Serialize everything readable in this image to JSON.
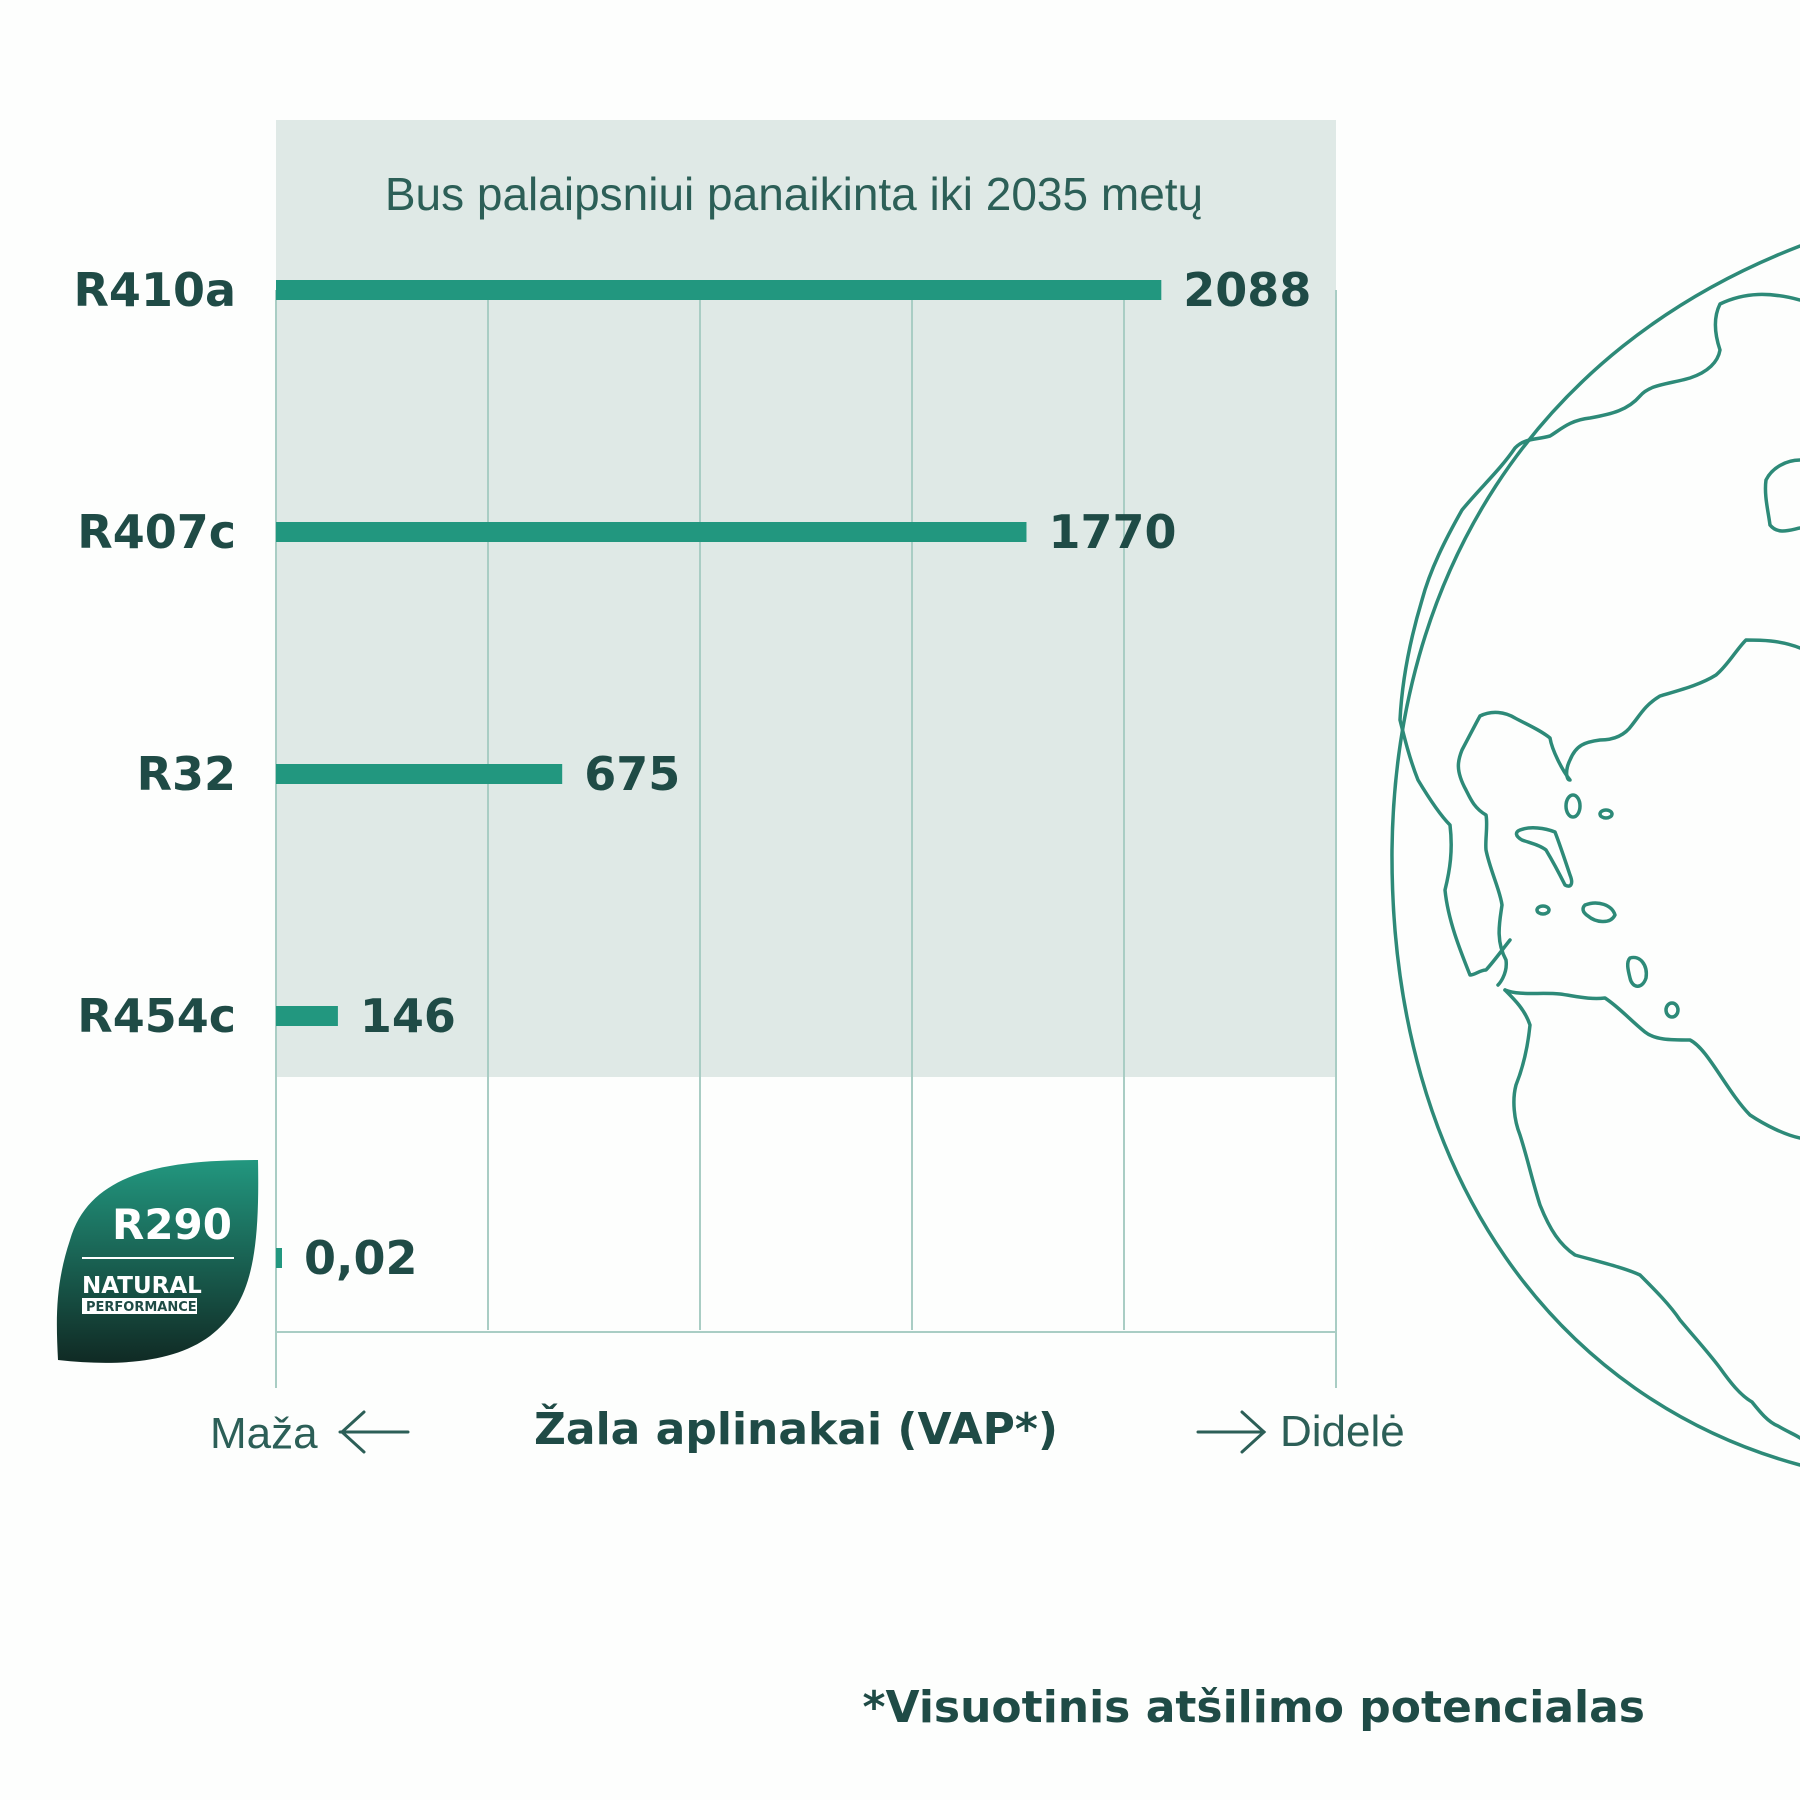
{
  "colors": {
    "accent": "#22977f",
    "text": "#1f4b46",
    "band": "#dfe9e6",
    "grid": "#a9cdc4",
    "globe": "#2d8a78",
    "badge_top": "#22977f",
    "badge_bottom": "#102a24"
  },
  "chart_data": {
    "type": "bar",
    "orientation": "horizontal",
    "categories": [
      "R410a",
      "R407c",
      "R32",
      "R454c",
      "R290"
    ],
    "values": [
      2088,
      1770,
      675,
      146,
      0.02
    ],
    "value_labels": [
      "2088",
      "1770",
      "675",
      "146",
      "0,02"
    ],
    "band_label": "Bus palaipsniui panaikinta iki 2035 metų",
    "xlabel": "Žala aplinakai (VAP*)",
    "x_low_label": "Maža",
    "x_high_label": "Didelė",
    "xlim": [
      0,
      2500
    ],
    "grid": true
  },
  "badge": {
    "title": "R290",
    "line1": "NATURAL",
    "line2": "PERFORMANCE"
  },
  "footnote": "*Visuotinis atšilimo potencialas",
  "globe_icon": "globe-outline-icon"
}
